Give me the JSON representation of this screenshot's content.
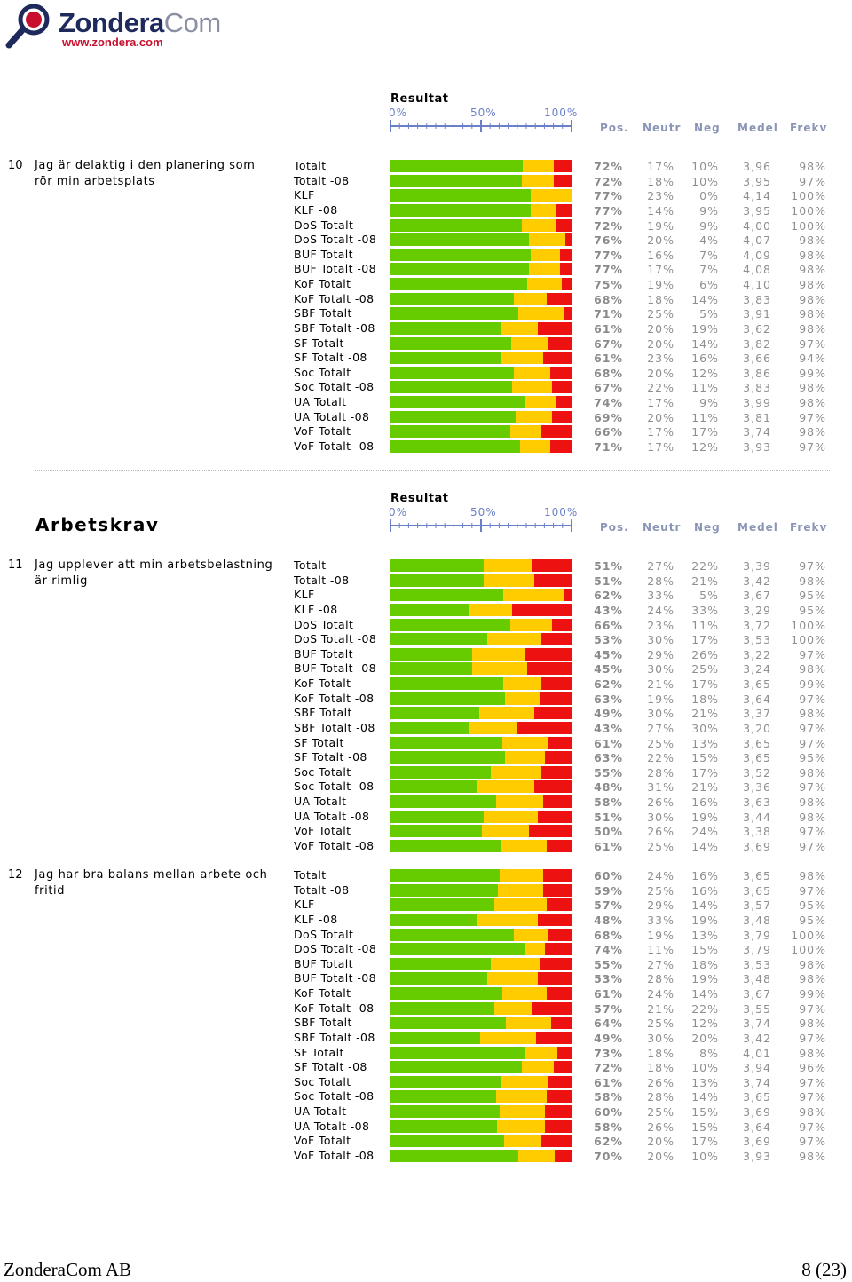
{
  "logo": {
    "word_main": "Zondera",
    "word_com": "Com",
    "url": "www.zondera.com"
  },
  "scale": {
    "result_label": "Resultat",
    "ticks": [
      "0%",
      "50%",
      "100%"
    ],
    "columns": [
      "Pos.",
      "Neutr",
      "Neg",
      "Medel",
      "Frekv"
    ]
  },
  "colors": {
    "positive": "#66cc00",
    "neutral": "#ffcc00",
    "negative": "#ee1111"
  },
  "section_title": "Arbetskrav",
  "chart_data": [
    {
      "type": "bar",
      "stacked": true,
      "orientation": "horizontal",
      "question_number": "10",
      "question": "Jag är delaktig i den planering som rör min arbetsplats",
      "categories": [
        "Totalt",
        "Totalt -08",
        "KLF",
        "KLF -08",
        "DoS Totalt",
        "DoS Totalt -08",
        "BUF Totalt",
        "BUF Totalt -08",
        "KoF Totalt",
        "KoF Totalt -08",
        "SBF Totalt",
        "SBF Totalt -08",
        "SF Totalt",
        "SF Totalt -08",
        "Soc Totalt",
        "Soc Totalt -08",
        "UA Totalt",
        "UA Totalt -08",
        "VoF Totalt",
        "VoF Totalt -08"
      ],
      "series": [
        {
          "name": "Pos.",
          "values": [
            72,
            72,
            77,
            77,
            72,
            76,
            77,
            77,
            75,
            68,
            71,
            61,
            67,
            61,
            68,
            67,
            74,
            69,
            66,
            71
          ]
        },
        {
          "name": "Neutr",
          "values": [
            17,
            18,
            23,
            14,
            19,
            20,
            16,
            17,
            19,
            18,
            25,
            20,
            20,
            23,
            20,
            22,
            17,
            20,
            17,
            17
          ]
        },
        {
          "name": "Neg",
          "values": [
            10,
            10,
            0,
            9,
            9,
            4,
            7,
            7,
            6,
            14,
            5,
            19,
            14,
            16,
            12,
            11,
            9,
            11,
            17,
            12
          ]
        }
      ],
      "medel": [
        "3,96",
        "3,95",
        "4,14",
        "3,95",
        "4,00",
        "4,07",
        "4,09",
        "4,08",
        "4,10",
        "3,83",
        "3,91",
        "3,62",
        "3,82",
        "3,66",
        "3,86",
        "3,83",
        "3,99",
        "3,81",
        "3,74",
        "3,93"
      ],
      "frekv": [
        "98%",
        "97%",
        "100%",
        "100%",
        "100%",
        "98%",
        "98%",
        "98%",
        "98%",
        "98%",
        "98%",
        "98%",
        "97%",
        "94%",
        "99%",
        "98%",
        "98%",
        "97%",
        "98%",
        "97%"
      ],
      "xlim": [
        0,
        100
      ]
    },
    {
      "type": "bar",
      "stacked": true,
      "orientation": "horizontal",
      "question_number": "11",
      "question": "Jag upplever att min arbetsbelastning är rimlig",
      "categories": [
        "Totalt",
        "Totalt -08",
        "KLF",
        "KLF -08",
        "DoS Totalt",
        "DoS Totalt -08",
        "BUF Totalt",
        "BUF Totalt -08",
        "KoF Totalt",
        "KoF Totalt -08",
        "SBF Totalt",
        "SBF Totalt -08",
        "SF Totalt",
        "SF Totalt -08",
        "Soc Totalt",
        "Soc Totalt -08",
        "UA Totalt",
        "UA Totalt -08",
        "VoF Totalt",
        "VoF Totalt -08"
      ],
      "series": [
        {
          "name": "Pos.",
          "values": [
            51,
            51,
            62,
            43,
            66,
            53,
            45,
            45,
            62,
            63,
            49,
            43,
            61,
            63,
            55,
            48,
            58,
            51,
            50,
            61
          ]
        },
        {
          "name": "Neutr",
          "values": [
            27,
            28,
            33,
            24,
            23,
            30,
            29,
            30,
            21,
            19,
            30,
            27,
            25,
            22,
            28,
            31,
            26,
            30,
            26,
            25
          ]
        },
        {
          "name": "Neg",
          "values": [
            22,
            21,
            5,
            33,
            11,
            17,
            26,
            25,
            17,
            18,
            21,
            30,
            13,
            15,
            17,
            21,
            16,
            19,
            24,
            14
          ]
        }
      ],
      "medel": [
        "3,39",
        "3,42",
        "3,67",
        "3,29",
        "3,72",
        "3,53",
        "3,22",
        "3,24",
        "3,65",
        "3,64",
        "3,37",
        "3,20",
        "3,65",
        "3,65",
        "3,52",
        "3,36",
        "3,63",
        "3,44",
        "3,38",
        "3,69"
      ],
      "frekv": [
        "97%",
        "98%",
        "95%",
        "95%",
        "100%",
        "100%",
        "97%",
        "98%",
        "99%",
        "97%",
        "98%",
        "97%",
        "97%",
        "95%",
        "98%",
        "97%",
        "98%",
        "98%",
        "97%",
        "97%"
      ],
      "xlim": [
        0,
        100
      ]
    },
    {
      "type": "bar",
      "stacked": true,
      "orientation": "horizontal",
      "question_number": "12",
      "question": "Jag har bra balans mellan arbete och fritid",
      "categories": [
        "Totalt",
        "Totalt -08",
        "KLF",
        "KLF -08",
        "DoS Totalt",
        "DoS Totalt -08",
        "BUF Totalt",
        "BUF Totalt -08",
        "KoF Totalt",
        "KoF Totalt -08",
        "SBF Totalt",
        "SBF Totalt -08",
        "SF Totalt",
        "SF Totalt -08",
        "Soc Totalt",
        "Soc Totalt -08",
        "UA Totalt",
        "UA Totalt -08",
        "VoF Totalt",
        "VoF Totalt -08"
      ],
      "series": [
        {
          "name": "Pos.",
          "values": [
            60,
            59,
            57,
            48,
            68,
            74,
            55,
            53,
            61,
            57,
            64,
            49,
            73,
            72,
            61,
            58,
            60,
            58,
            62,
            70
          ]
        },
        {
          "name": "Neutr",
          "values": [
            24,
            25,
            29,
            33,
            19,
            11,
            27,
            28,
            24,
            21,
            25,
            30,
            18,
            18,
            26,
            28,
            25,
            26,
            20,
            20
          ]
        },
        {
          "name": "Neg",
          "values": [
            16,
            16,
            14,
            19,
            13,
            15,
            18,
            19,
            14,
            22,
            12,
            20,
            8,
            10,
            13,
            14,
            15,
            15,
            17,
            10
          ]
        }
      ],
      "medel": [
        "3,65",
        "3,65",
        "3,57",
        "3,48",
        "3,79",
        "3,79",
        "3,53",
        "3,48",
        "3,67",
        "3,55",
        "3,74",
        "3,42",
        "4,01",
        "3,94",
        "3,74",
        "3,65",
        "3,69",
        "3,64",
        "3,69",
        "3,93"
      ],
      "frekv": [
        "98%",
        "97%",
        "95%",
        "95%",
        "100%",
        "100%",
        "98%",
        "98%",
        "99%",
        "97%",
        "98%",
        "97%",
        "98%",
        "96%",
        "97%",
        "97%",
        "98%",
        "97%",
        "97%",
        "98%"
      ],
      "xlim": [
        0,
        100
      ]
    }
  ],
  "footer": {
    "company": "ZonderaCom AB",
    "page": "8 (23)"
  }
}
